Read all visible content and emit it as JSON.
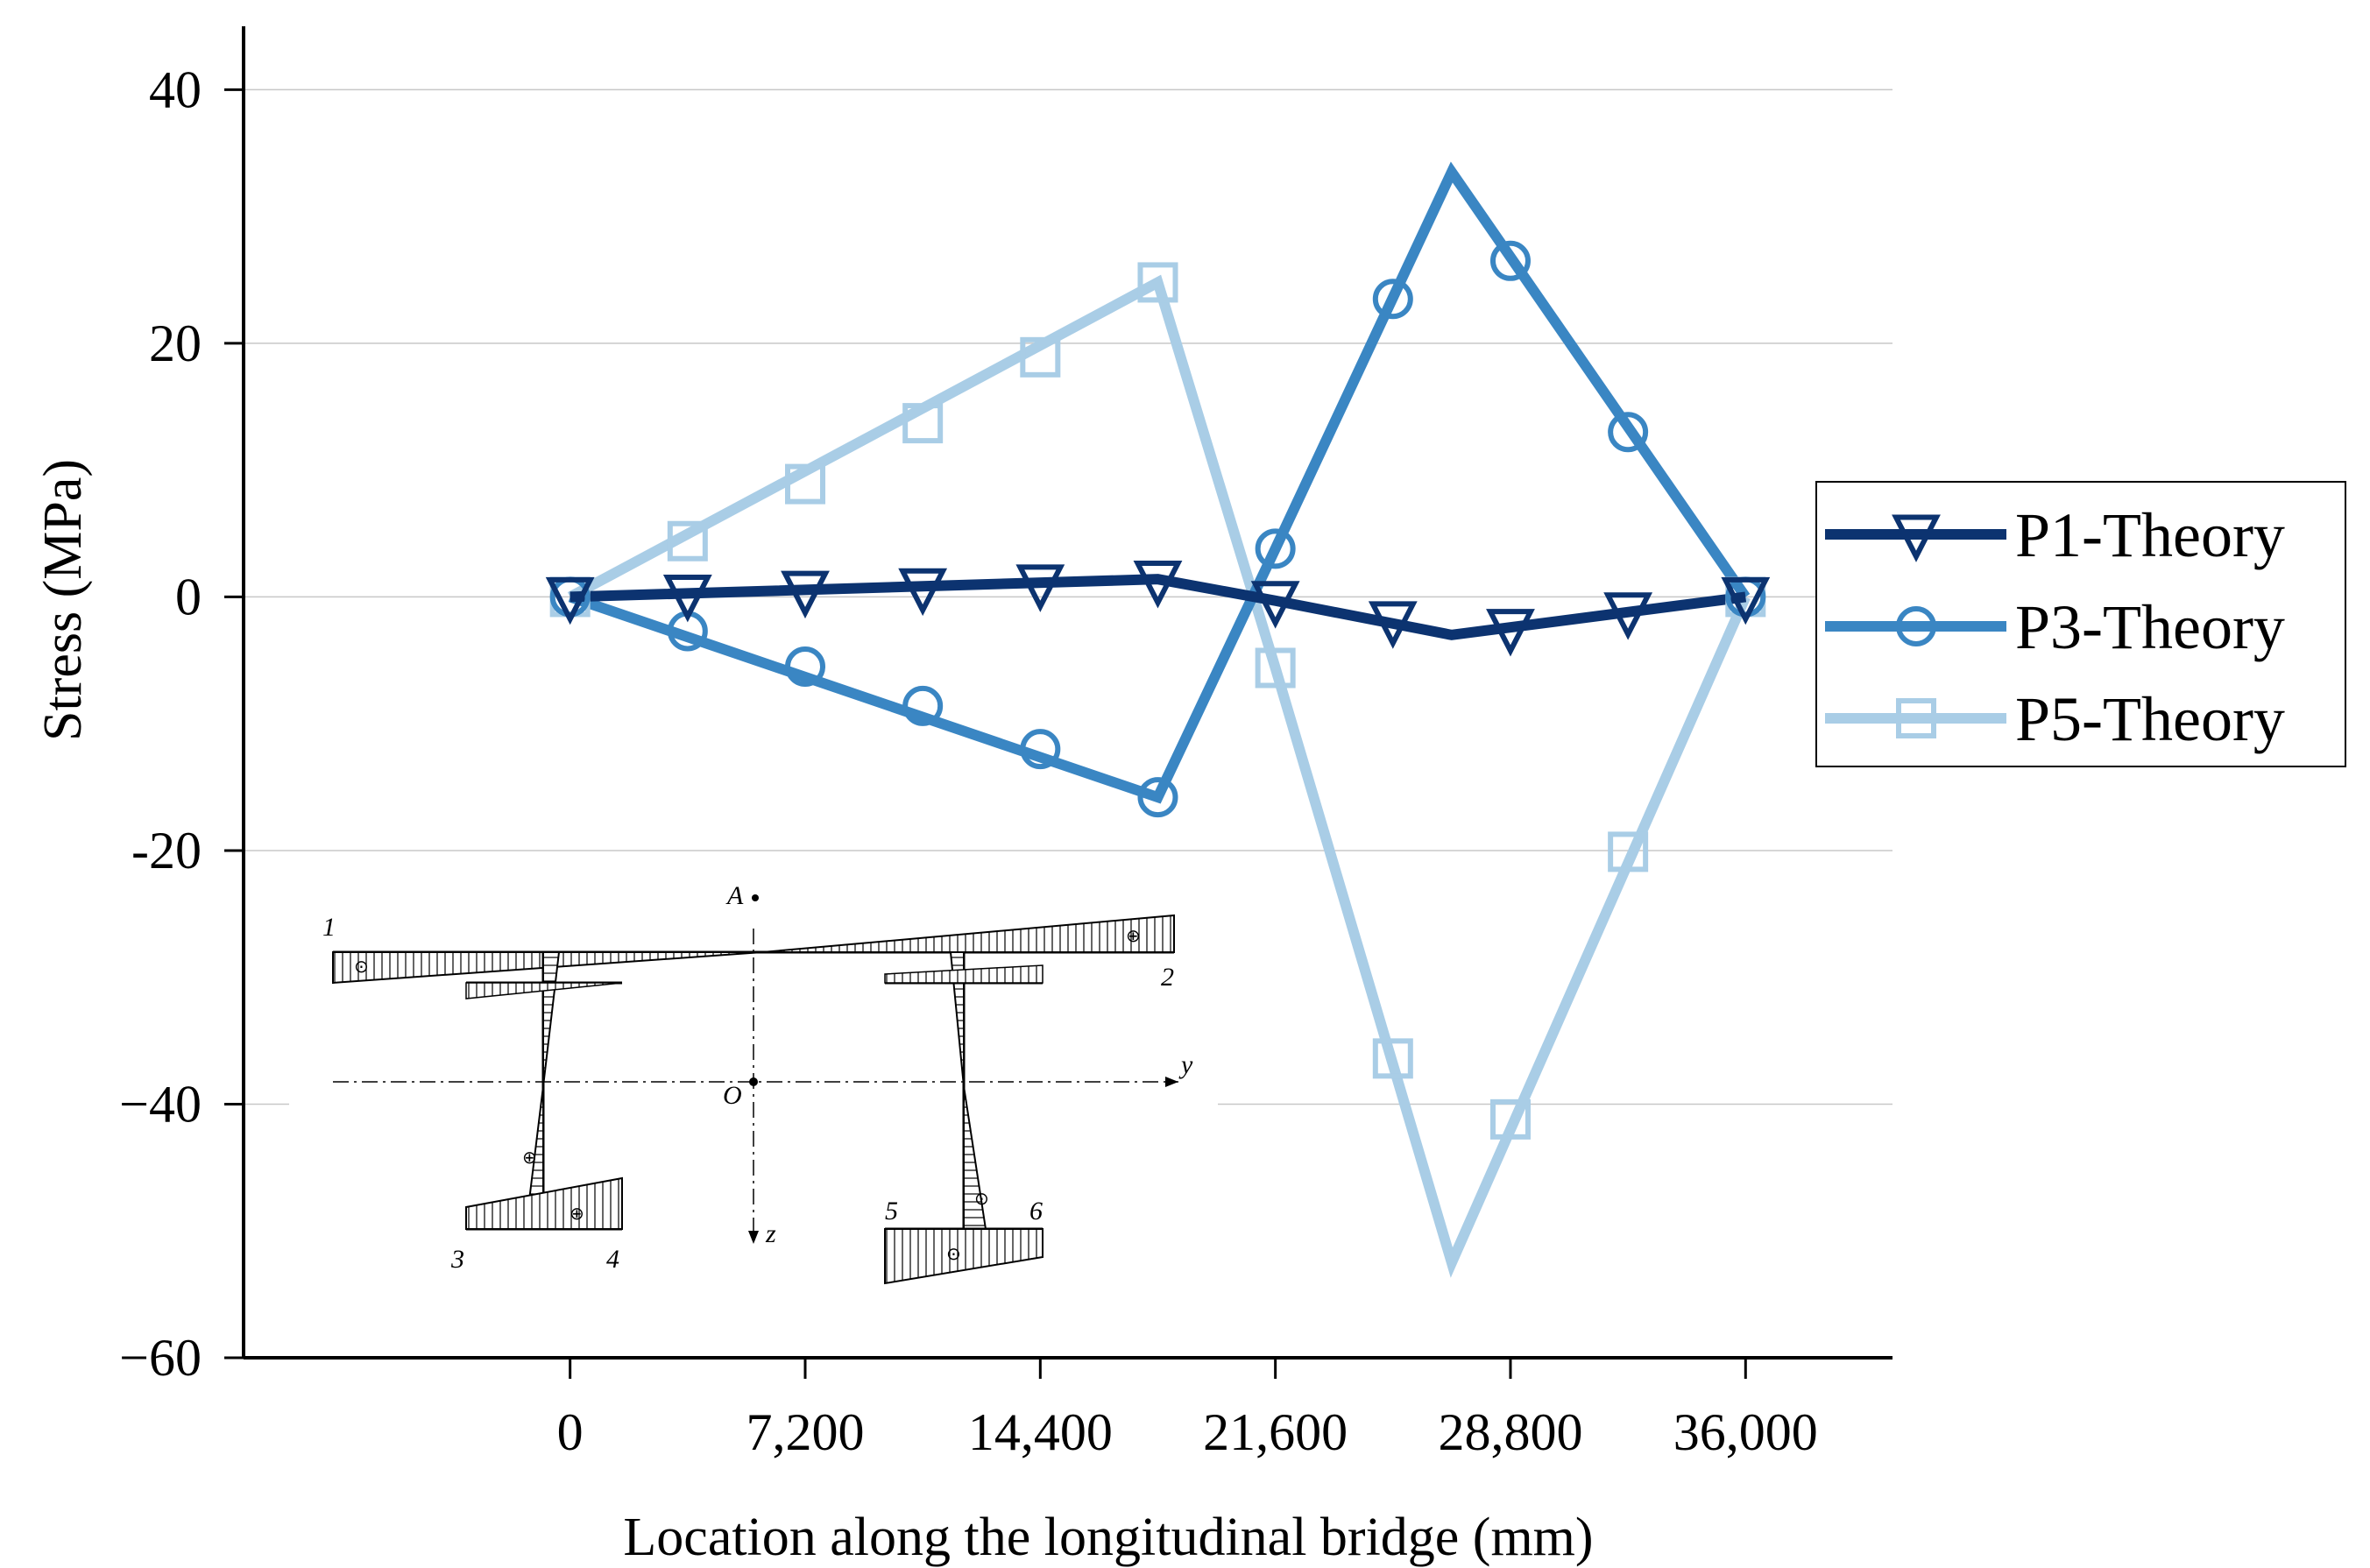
{
  "chart_data": {
    "type": "line",
    "title": "",
    "xlabel": "Location along the longitudinal bridge (mm)",
    "ylabel": "Stress (MPa)",
    "xlim": [
      -10000,
      40500
    ],
    "ylim": [
      -60,
      45
    ],
    "x_ticks": [
      0,
      7200,
      14400,
      21600,
      28800,
      36000
    ],
    "x_tick_labels": [
      "0",
      "7,200",
      "14,400",
      "21,600",
      "28,800",
      "36,000"
    ],
    "y_ticks": [
      40,
      20,
      0,
      -20,
      -40,
      -60
    ],
    "y_tick_labels": [
      "40",
      "20",
      "0",
      "-20",
      "−40",
      "−60"
    ],
    "grid": "horizontal",
    "legend_position": "right",
    "series": [
      {
        "name": "P1-Theory",
        "color": "#0c3370",
        "marker": "triangle-down",
        "line_x": [
          0,
          18000,
          21600,
          27000,
          36000
        ],
        "line_y": [
          0,
          1.4,
          -0.3,
          -3.0,
          0
        ],
        "x": [
          0,
          3600,
          7200,
          10800,
          14400,
          18000,
          21600,
          25200,
          28800,
          32400,
          36000
        ],
        "y": [
          0,
          0.2,
          0.5,
          0.7,
          1.0,
          1.3,
          -0.3,
          -1.9,
          -2.5,
          -1.2,
          0
        ]
      },
      {
        "name": "P3-Theory",
        "color": "#3a86c3",
        "marker": "circle",
        "line_x": [
          0,
          18000,
          21600,
          27000,
          36000
        ],
        "line_y": [
          0,
          -15.8,
          3.8,
          33.5,
          0
        ],
        "x": [
          0,
          3600,
          7200,
          10800,
          14400,
          18000,
          21600,
          25200,
          28800,
          32400,
          36000
        ],
        "y": [
          0,
          -2.7,
          -5.5,
          -8.6,
          -12.0,
          -15.8,
          3.8,
          23.5,
          26.5,
          13.0,
          0
        ]
      },
      {
        "name": "P5-Theory",
        "color": "#a9cde6",
        "marker": "square",
        "line_x": [
          0,
          18000,
          21600,
          27000,
          36000
        ],
        "line_y": [
          0,
          24.8,
          -5.6,
          -52.5,
          0
        ],
        "x": [
          0,
          3600,
          7200,
          10800,
          14400,
          18000,
          21600,
          25200,
          28800,
          32400,
          36000
        ],
        "y": [
          0,
          4.4,
          8.9,
          13.7,
          18.9,
          24.8,
          -5.6,
          -36.4,
          -41.2,
          -20.1,
          0
        ]
      }
    ],
    "inset": {
      "point_labels": [
        "1",
        "2",
        "3",
        "4",
        "5",
        "6"
      ],
      "axis_labels": [
        "A",
        "O",
        "y",
        "z"
      ],
      "symbols": [
        "⊙",
        "⊕"
      ]
    }
  }
}
